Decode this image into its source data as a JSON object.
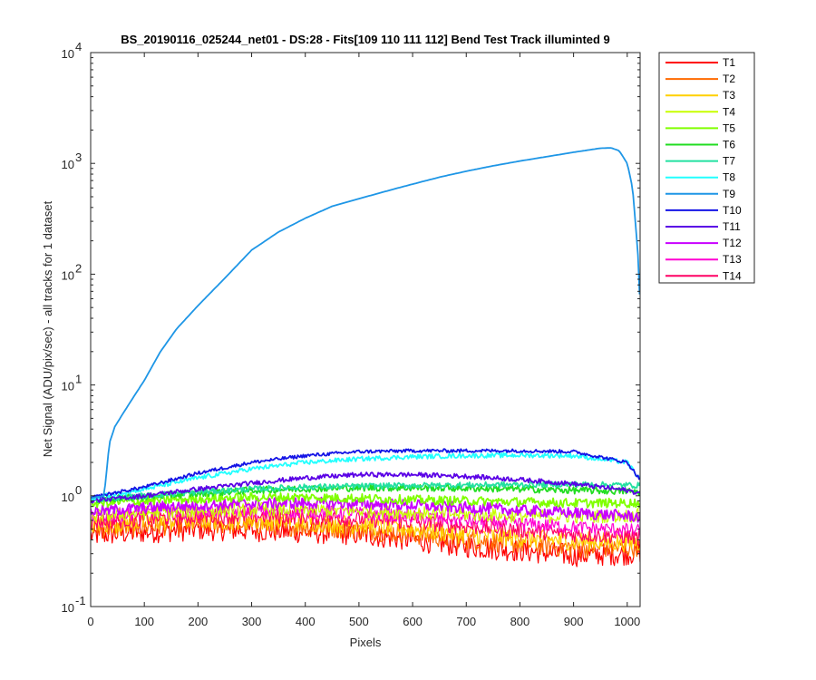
{
  "chart_data": {
    "type": "line",
    "title": "BS_20190116_025244_net01 - DS:28 - Fits[109  110  111  112]   Bend Test       Track illuminted 9",
    "xlabel": "Pixels",
    "ylabel": "Net Signal (ADU/pix/sec) - all tracks for 1 dataset",
    "xlim": [
      0,
      1024
    ],
    "ylim": [
      0.1,
      10000
    ],
    "yscale": "log",
    "grid": false,
    "legend_position": "outside-top-right",
    "x_ticks": [
      "0",
      "100",
      "200",
      "300",
      "400",
      "500",
      "600",
      "700",
      "800",
      "900",
      "1000"
    ],
    "y_tick_exponents": [
      "-1",
      "0",
      "1",
      "2",
      "3",
      "4"
    ],
    "y_tick_base": "10",
    "series": [
      {
        "name": "T1",
        "color": "#ff0000",
        "x": [
          0,
          100,
          200,
          300,
          400,
          500,
          600,
          700,
          800,
          900,
          1000,
          1024
        ],
        "y": [
          0.44,
          0.47,
          0.5,
          0.49,
          0.47,
          0.45,
          0.4,
          0.35,
          0.32,
          0.29,
          0.3,
          0.31
        ],
        "noise": 0.2
      },
      {
        "name": "T2",
        "color": "#ff6a00",
        "x": [
          0,
          100,
          200,
          300,
          400,
          500,
          600,
          700,
          800,
          900,
          1000,
          1024
        ],
        "y": [
          0.5,
          0.53,
          0.56,
          0.55,
          0.53,
          0.5,
          0.45,
          0.4,
          0.37,
          0.34,
          0.34,
          0.35
        ],
        "noise": 0.18
      },
      {
        "name": "T3",
        "color": "#ffd000",
        "x": [
          0,
          100,
          200,
          300,
          400,
          500,
          600,
          700,
          800,
          900,
          1000,
          1024
        ],
        "y": [
          0.55,
          0.58,
          0.61,
          0.6,
          0.58,
          0.55,
          0.5,
          0.45,
          0.42,
          0.39,
          0.38,
          0.38
        ],
        "noise": 0.17
      },
      {
        "name": "T4",
        "color": "#c8ff00",
        "x": [
          0,
          100,
          200,
          300,
          400,
          500,
          600,
          700,
          800,
          900,
          1000,
          1024
        ],
        "y": [
          0.65,
          0.7,
          0.74,
          0.76,
          0.75,
          0.73,
          0.7,
          0.68,
          0.66,
          0.65,
          0.66,
          0.67
        ],
        "noise": 0.12
      },
      {
        "name": "T5",
        "color": "#80ff00",
        "x": [
          0,
          100,
          200,
          300,
          400,
          500,
          600,
          700,
          800,
          900,
          1000,
          1024
        ],
        "y": [
          0.85,
          0.9,
          0.94,
          0.97,
          0.97,
          0.95,
          0.92,
          0.9,
          0.88,
          0.86,
          0.86,
          0.86
        ],
        "noise": 0.08
      },
      {
        "name": "T6",
        "color": "#22dd22",
        "x": [
          0,
          100,
          200,
          300,
          400,
          500,
          600,
          700,
          800,
          900,
          1000,
          1024
        ],
        "y": [
          0.92,
          0.98,
          1.05,
          1.12,
          1.16,
          1.18,
          1.18,
          1.17,
          1.15,
          1.12,
          1.1,
          1.08
        ],
        "noise": 0.06
      },
      {
        "name": "T7",
        "color": "#22e0a0",
        "x": [
          0,
          100,
          200,
          300,
          400,
          500,
          600,
          700,
          800,
          900,
          1000,
          1024
        ],
        "y": [
          0.92,
          1.0,
          1.08,
          1.15,
          1.2,
          1.22,
          1.24,
          1.25,
          1.26,
          1.27,
          1.25,
          1.24
        ],
        "noise": 0.05
      },
      {
        "name": "T8",
        "color": "#22ffff",
        "x": [
          0,
          100,
          200,
          300,
          400,
          500,
          600,
          700,
          800,
          900,
          1000,
          1024
        ],
        "y": [
          0.95,
          1.15,
          1.45,
          1.75,
          2.0,
          2.15,
          2.25,
          2.3,
          2.32,
          2.3,
          2.0,
          1.4
        ],
        "noise": 0.04
      },
      {
        "name": "T9",
        "color": "#1e96e6",
        "x": [
          0,
          25,
          35,
          45,
          60,
          80,
          100,
          130,
          160,
          200,
          250,
          300,
          350,
          400,
          450,
          500,
          550,
          600,
          650,
          700,
          750,
          800,
          850,
          900,
          950,
          970,
          985,
          1000,
          1010,
          1020,
          1024
        ],
        "y": [
          0.95,
          1.0,
          3.0,
          4.2,
          5.5,
          7.8,
          11,
          20,
          32,
          52,
          92,
          165,
          240,
          320,
          410,
          480,
          560,
          650,
          750,
          850,
          950,
          1050,
          1150,
          1260,
          1370,
          1380,
          1300,
          1000,
          600,
          150,
          50
        ],
        "noise": 0.0
      },
      {
        "name": "T10",
        "color": "#1414e6",
        "x": [
          0,
          100,
          200,
          300,
          400,
          500,
          600,
          700,
          800,
          900,
          1000,
          1024
        ],
        "y": [
          0.96,
          1.2,
          1.6,
          2.0,
          2.3,
          2.5,
          2.55,
          2.55,
          2.55,
          2.5,
          2.0,
          1.4
        ],
        "noise": 0.03
      },
      {
        "name": "T11",
        "color": "#5a00e6",
        "x": [
          0,
          100,
          200,
          300,
          400,
          500,
          600,
          700,
          800,
          900,
          1000,
          1024
        ],
        "y": [
          0.9,
          1.0,
          1.15,
          1.3,
          1.45,
          1.55,
          1.55,
          1.5,
          1.4,
          1.28,
          1.12,
          1.05
        ],
        "noise": 0.04
      },
      {
        "name": "T12",
        "color": "#c800ff",
        "x": [
          0,
          100,
          200,
          300,
          400,
          500,
          600,
          700,
          800,
          900,
          1000,
          1024
        ],
        "y": [
          0.72,
          0.78,
          0.82,
          0.85,
          0.86,
          0.85,
          0.82,
          0.78,
          0.74,
          0.7,
          0.66,
          0.64
        ],
        "noise": 0.1
      },
      {
        "name": "T13",
        "color": "#ff00d2",
        "x": [
          0,
          100,
          200,
          300,
          400,
          500,
          600,
          700,
          800,
          900,
          1000,
          1024
        ],
        "y": [
          0.65,
          0.7,
          0.72,
          0.73,
          0.72,
          0.69,
          0.65,
          0.6,
          0.56,
          0.52,
          0.49,
          0.48
        ],
        "noise": 0.12
      },
      {
        "name": "T14",
        "color": "#ff0064",
        "x": [
          0,
          100,
          200,
          300,
          400,
          500,
          600,
          700,
          800,
          900,
          1000,
          1024
        ],
        "y": [
          0.58,
          0.62,
          0.65,
          0.66,
          0.65,
          0.62,
          0.58,
          0.53,
          0.49,
          0.45,
          0.43,
          0.42
        ],
        "noise": 0.14
      }
    ]
  }
}
